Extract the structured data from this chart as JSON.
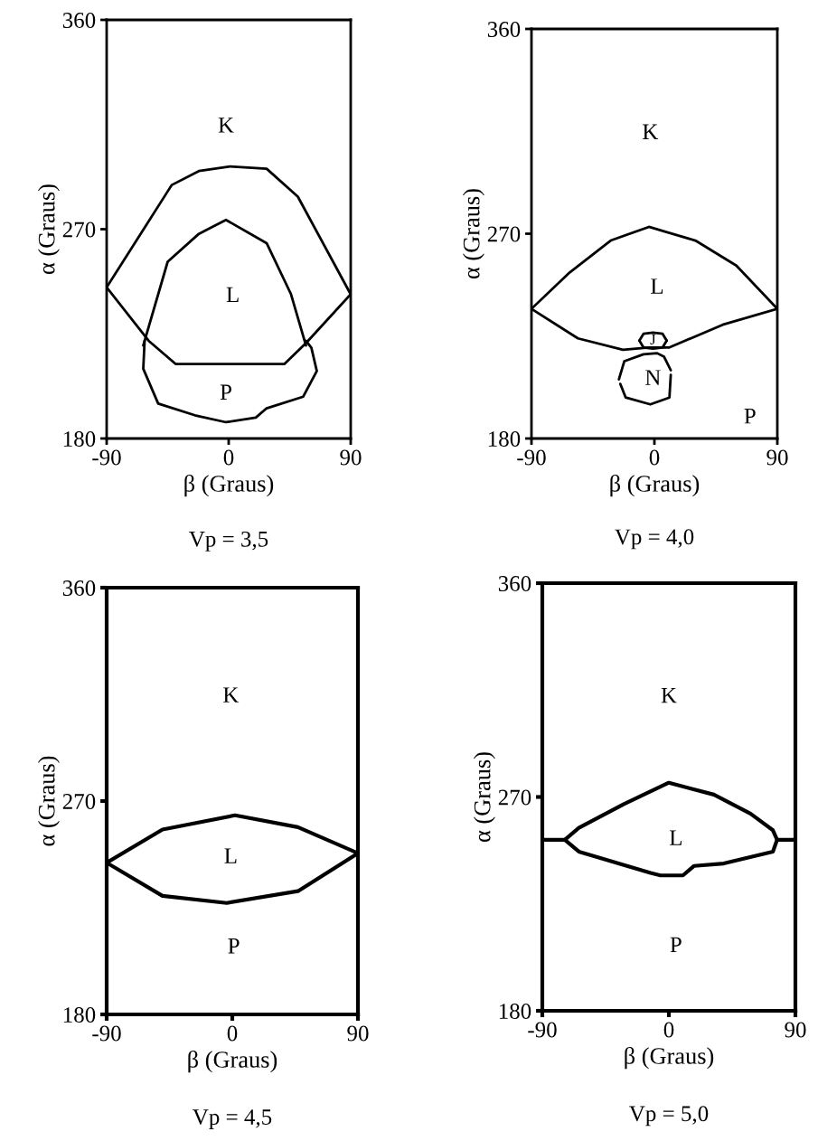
{
  "chart_data": [
    {
      "type": "line",
      "xlabel": "β (Graus)",
      "ylabel": "α (Graus)",
      "xlim": [
        -90,
        90
      ],
      "ylim": [
        180,
        360
      ],
      "xticks": [
        -90,
        0,
        90
      ],
      "yticks": [
        180,
        270,
        360
      ],
      "grid": false,
      "series": [
        {
          "color": "#000000",
          "x": [
            -90,
            -42,
            -22,
            1,
            28,
            51,
            90
          ],
          "values": [
            245,
            289,
            295,
            297,
            296,
            284,
            242
          ]
        },
        {
          "color": "#000000",
          "x": [
            -90,
            -59,
            -39,
            41,
            57,
            90
          ],
          "values": [
            245,
            222,
            212,
            212,
            221,
            242
          ]
        },
        {
          "color": "#000000",
          "x": [
            -63,
            -45,
            -22,
            -2,
            28,
            46,
            57
          ],
          "values": [
            220,
            256,
            268,
            274,
            264,
            242,
            220
          ]
        },
        {
          "color": "#000000",
          "x": [
            -62,
            -63,
            -52,
            -25,
            -2,
            20,
            28,
            55,
            65,
            61,
            57
          ],
          "values": [
            222,
            210,
            195,
            190,
            187,
            189,
            193,
            198,
            209,
            219,
            222
          ]
        }
      ],
      "annotations": [
        "K",
        "L",
        "P",
        "Vp = 3,5"
      ]
    },
    {
      "type": "line",
      "xlabel": "β (Graus)",
      "ylabel": "α (Graus)",
      "xlim": [
        -90,
        90
      ],
      "ylim": [
        180,
        360
      ],
      "xticks": [
        -90,
        0,
        90
      ],
      "yticks": [
        180,
        270,
        360
      ],
      "grid": false,
      "series": [
        {
          "color": "#000000",
          "x": [
            -90,
            -62,
            -32,
            -4,
            30,
            60,
            90
          ],
          "values": [
            237,
            253,
            267,
            273,
            267,
            256,
            237
          ]
        },
        {
          "color": "#000000",
          "x": [
            -90,
            -56,
            -23,
            -4,
            11,
            50,
            90
          ],
          "values": [
            237,
            224,
            219,
            220,
            220,
            230,
            237
          ]
        },
        {
          "color": "#000000",
          "x": [
            -11,
            -8,
            -1,
            6,
            9
          ],
          "values": [
            223,
            226,
            226.5,
            226,
            223
          ]
        },
        {
          "color": "#000000",
          "x": [
            -11,
            -8,
            -1,
            6,
            9
          ],
          "values": [
            223,
            220,
            219.5,
            220,
            223
          ]
        },
        {
          "color": "#000000",
          "x": [
            -26,
            -22,
            -8,
            2,
            7,
            12
          ],
          "values": [
            206,
            214,
            217,
            217.5,
            216,
            210
          ]
        },
        {
          "color": "#000000",
          "x": [
            -25,
            -21,
            -3,
            11,
            12
          ],
          "values": [
            204,
            198,
            195,
            198,
            208
          ]
        }
      ],
      "annotations": [
        "K",
        "L",
        "J",
        "N",
        "P",
        "Vp = 4,0"
      ]
    },
    {
      "type": "line",
      "xlabel": "β (Graus)",
      "ylabel": "α (Graus)",
      "xlim": [
        -90,
        90
      ],
      "ylim": [
        180,
        360
      ],
      "xticks": [
        -90,
        0,
        90
      ],
      "yticks": [
        180,
        270,
        360
      ],
      "grid": false,
      "series": [
        {
          "color": "#000000",
          "x": [
            -90,
            -50,
            2,
            47,
            90
          ],
          "values": [
            244,
            258,
            264,
            259,
            248
          ]
        },
        {
          "color": "#000000",
          "x": [
            -90,
            -50,
            -4,
            47,
            90
          ],
          "values": [
            244,
            230,
            227,
            232,
            248
          ]
        }
      ],
      "annotations": [
        "K",
        "L",
        "P",
        "Vp = 4,5"
      ]
    },
    {
      "type": "line",
      "xlabel": "β (Graus)",
      "ylabel": "α (Graus)",
      "xlim": [
        -90,
        90
      ],
      "ylim": [
        180,
        360
      ],
      "xticks": [
        -90,
        0,
        90
      ],
      "yticks": [
        180,
        270,
        360
      ],
      "grid": false,
      "series": [
        {
          "color": "#000000",
          "x": [
            -90,
            -74,
            -64,
            -32,
            0,
            32,
            58,
            74,
            77,
            90
          ],
          "values": [
            252,
            252,
            257,
            267,
            276,
            271,
            263,
            256,
            252,
            252
          ]
        },
        {
          "color": "#000000",
          "x": [
            -74,
            -64,
            -13,
            -6,
            10,
            18,
            39,
            74,
            77
          ],
          "values": [
            252,
            247,
            238,
            237,
            237,
            241,
            242,
            247,
            252
          ]
        }
      ],
      "annotations": [
        "K",
        "L",
        "P",
        "Vp = 5,0"
      ]
    }
  ]
}
